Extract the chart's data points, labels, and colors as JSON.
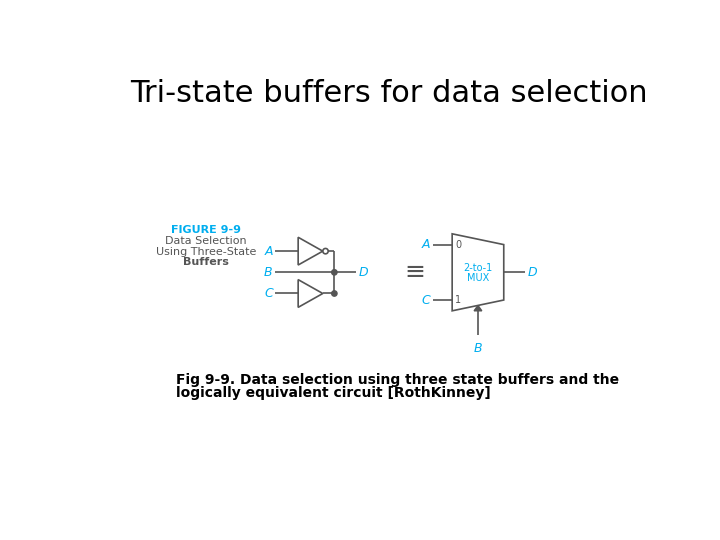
{
  "title": "Tri-state buffers for data selection",
  "title_fontsize": 22,
  "fig_color": "#ffffff",
  "circuit_color": "#555555",
  "cyan_color": "#00AEEF",
  "figure_label": "FIGURE 9-9",
  "caption_line1": "Data Selection",
  "caption_line2": "Using Three-State",
  "caption_line3": "Buffers",
  "bottom_text_line1": "Fig 9-9. Data selection using three state buffers and the",
  "bottom_text_line2": "logically equivalent circuit [RothKinney]",
  "lw": 1.2
}
